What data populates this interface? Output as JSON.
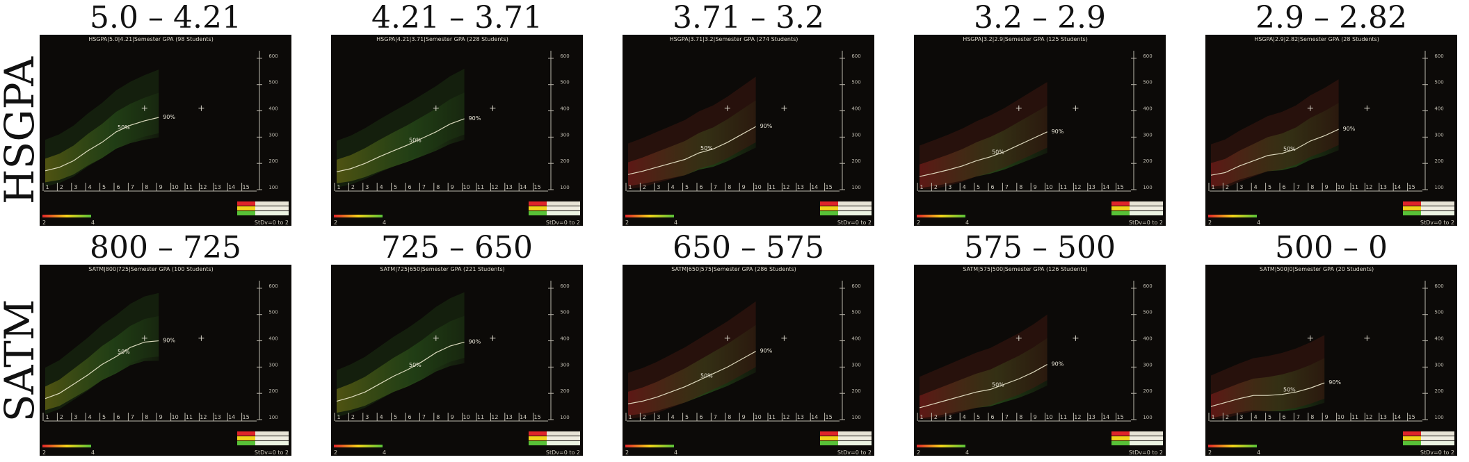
{
  "rows": [
    {
      "label": "HSGPA",
      "panels": [
        {
          "title": "5.0 – 4.21",
          "caption": "HSGPA|5.0|4.21|Semester GPA (98 Students)",
          "p50": "50%",
          "p90": "90%",
          "curve": [
            [
              1,
              172
            ],
            [
              2,
              185
            ],
            [
              3,
              210
            ],
            [
              4,
              248
            ],
            [
              5,
              280
            ],
            [
              6,
              320
            ],
            [
              7,
              345
            ],
            [
              8,
              362
            ],
            [
              9,
              375
            ]
          ]
        },
        {
          "title": "4.21 – 3.71",
          "caption": "HSGPA|4.21|3.71|Semester GPA (228 Students)",
          "p50": "50%",
          "p90": "90%",
          "curve": [
            [
              1,
              168
            ],
            [
              2,
              180
            ],
            [
              3,
              200
            ],
            [
              4,
              225
            ],
            [
              5,
              248
            ],
            [
              6,
              270
            ],
            [
              7,
              295
            ],
            [
              8,
              320
            ],
            [
              9,
              350
            ],
            [
              10,
              370
            ]
          ]
        },
        {
          "title": "3.71 – 3.2",
          "caption": "HSGPA|3.71|3.2|Semester GPA (274 Students)",
          "p50": "50%",
          "p90": "90%",
          "curve": [
            [
              1,
              158
            ],
            [
              2,
              170
            ],
            [
              3,
              185
            ],
            [
              4,
              200
            ],
            [
              5,
              215
            ],
            [
              6,
              240
            ],
            [
              7,
              255
            ],
            [
              8,
              280
            ],
            [
              9,
              310
            ],
            [
              10,
              340
            ]
          ]
        },
        {
          "title": "3.2 – 2.9",
          "caption": "HSGPA|3.2|2.9|Semester GPA (125 Students)",
          "p50": "50%",
          "p90": "90%",
          "curve": [
            [
              1,
              150
            ],
            [
              2,
              162
            ],
            [
              3,
              175
            ],
            [
              4,
              190
            ],
            [
              5,
              210
            ],
            [
              6,
              225
            ],
            [
              7,
              245
            ],
            [
              8,
              270
            ],
            [
              9,
              295
            ],
            [
              10,
              320
            ]
          ]
        },
        {
          "title": "2.9 – 2.82",
          "caption": "HSGPA|2.9|2.82|Semester GPA (28 Students)",
          "p50": "50%",
          "p90": "90%",
          "curve": [
            [
              1,
              155
            ],
            [
              2,
              165
            ],
            [
              3,
              190
            ],
            [
              4,
              210
            ],
            [
              5,
              230
            ],
            [
              6,
              238
            ],
            [
              7,
              255
            ],
            [
              8,
              285
            ],
            [
              9,
              305
            ],
            [
              10,
              330
            ]
          ]
        }
      ]
    },
    {
      "label": "SATM",
      "panels": [
        {
          "title": "800 – 725",
          "caption": "SATM|800|725|Semester GPA (100 Students)",
          "p50": "50%",
          "p90": "90%",
          "curve": [
            [
              1,
              180
            ],
            [
              2,
              200
            ],
            [
              3,
              235
            ],
            [
              4,
              270
            ],
            [
              5,
              310
            ],
            [
              6,
              340
            ],
            [
              7,
              375
            ],
            [
              8,
              395
            ],
            [
              9,
              400
            ]
          ]
        },
        {
          "title": "725 – 650",
          "caption": "SATM|725|650|Semester GPA (221 Students)",
          "p50": "50%",
          "p90": "90%",
          "curve": [
            [
              1,
              170
            ],
            [
              2,
              185
            ],
            [
              3,
              205
            ],
            [
              4,
              235
            ],
            [
              5,
              265
            ],
            [
              6,
              290
            ],
            [
              7,
              320
            ],
            [
              8,
              355
            ],
            [
              9,
              380
            ],
            [
              10,
              395
            ]
          ]
        },
        {
          "title": "650 – 575",
          "caption": "SATM|650|575|Semester GPA (286 Students)",
          "p50": "50%",
          "p90": "90%",
          "curve": [
            [
              1,
              160
            ],
            [
              2,
              170
            ],
            [
              3,
              185
            ],
            [
              4,
              205
            ],
            [
              5,
              225
            ],
            [
              6,
              250
            ],
            [
              7,
              275
            ],
            [
              8,
              300
            ],
            [
              9,
              330
            ],
            [
              10,
              360
            ]
          ]
        },
        {
          "title": "575 – 500",
          "caption": "SATM|575|500|Semester GPA (126 Students)",
          "p50": "50%",
          "p90": "90%",
          "curve": [
            [
              1,
              145
            ],
            [
              2,
              160
            ],
            [
              3,
              175
            ],
            [
              4,
              190
            ],
            [
              5,
              205
            ],
            [
              6,
              215
            ],
            [
              7,
              235
            ],
            [
              8,
              255
            ],
            [
              9,
              280
            ],
            [
              10,
              310
            ]
          ]
        },
        {
          "title": "500 – 0",
          "caption": "SATM|500|0|Semester GPA (20 Students)",
          "p50": "50%",
          "p90": "90%",
          "curve": [
            [
              1,
              150
            ],
            [
              2,
              165
            ],
            [
              3,
              180
            ],
            [
              4,
              192
            ],
            [
              5,
              192
            ],
            [
              6,
              196
            ],
            [
              7,
              205
            ],
            [
              8,
              220
            ],
            [
              9,
              240
            ]
          ]
        }
      ]
    }
  ],
  "chart_data": {
    "type": "line",
    "layout": "2x5 small multiples",
    "x": [
      1,
      2,
      3,
      4,
      5,
      6,
      7,
      8,
      9,
      10,
      11,
      12,
      13,
      14,
      15
    ],
    "ylim": [
      100,
      650
    ],
    "yticks": [
      100,
      200,
      300,
      400,
      500,
      600
    ],
    "color_legend": {
      "min_label": "2",
      "max_label": "4",
      "stdev_label": "StDv=0 to 2"
    },
    "colors": {
      "low": "#e0242a",
      "mid": "#f2d21a",
      "high": "#58c238",
      "curve": "#f0ecd0",
      "background": "#0c0a08"
    }
  }
}
